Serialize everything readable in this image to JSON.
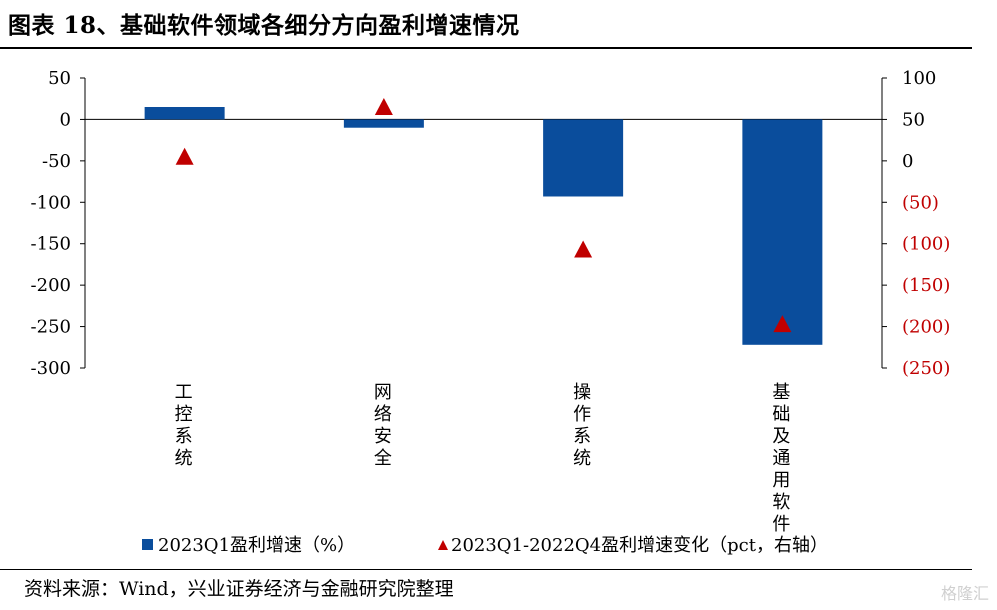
{
  "title": "图表 18、基础软件领域各细分方向盈利增速情况",
  "source": "资料来源：Wind，兴业证券经济与金融研究院整理",
  "watermark": "格隆汇",
  "colors": {
    "bar": "#0a4d9c",
    "marker": "#c00000",
    "negative_tick": "#c00000",
    "axis": "#000000"
  },
  "chart_data": {
    "type": "bar",
    "categories": [
      "工控系统",
      "网络安全",
      "操作系统",
      "基础及通用软件"
    ],
    "series": [
      {
        "name": "2023Q1盈利增速（%）",
        "type": "bar",
        "axis": "left",
        "values": [
          15,
          -10,
          -93,
          -272
        ]
      },
      {
        "name": "2023Q1-2022Q4盈利增速变化（pct，右轴）",
        "type": "scatter",
        "marker": "triangle",
        "axis": "right",
        "values": [
          5,
          65,
          -107,
          -197
        ]
      }
    ],
    "y_left": {
      "min": -300,
      "max": 50,
      "ticks": [
        "50",
        "0",
        "-50",
        "-100",
        "-150",
        "-200",
        "-250",
        "-300"
      ],
      "tick_values": [
        50,
        0,
        -50,
        -100,
        -150,
        -200,
        -250,
        -300
      ]
    },
    "y_right": {
      "min": -250,
      "max": 100,
      "ticks": [
        "100",
        "50",
        "0",
        "(50)",
        "(100)",
        "(150)",
        "(200)",
        "(250)"
      ],
      "tick_values": [
        100,
        50,
        0,
        -50,
        -100,
        -150,
        -200,
        -250
      ]
    },
    "legend": {
      "position": "bottom",
      "entries": [
        "2023Q1盈利增速（%）",
        "2023Q1-2022Q4盈利增速变化（pct，右轴）"
      ]
    },
    "grid": false
  }
}
